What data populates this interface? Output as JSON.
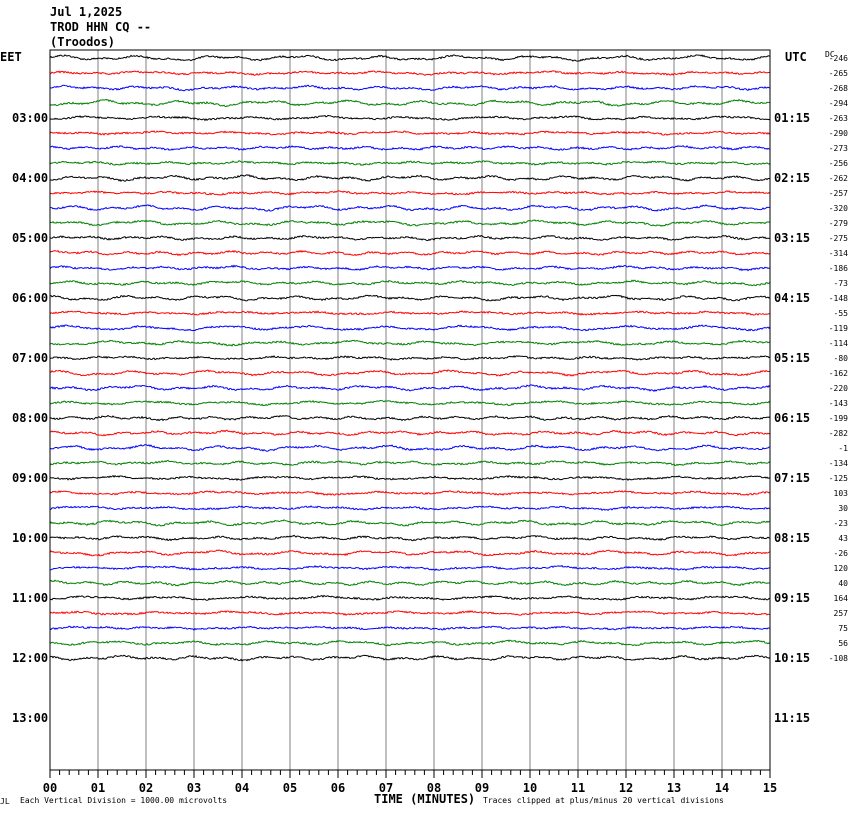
{
  "header": {
    "date": "Jul 1,2025",
    "station": "TROD HHN CQ --",
    "location": "(Troodos)"
  },
  "labels": {
    "left_tz": "EET",
    "right_tz": "UTC",
    "dc_label": "DC",
    "x_axis_title": "TIME (MINUTES)",
    "scale_note": "Each Vertical Division = 1000.00 microvolts",
    "clip_note": "Traces clipped at plus/minus 20 vertical divisions",
    "corner_mark": "JL"
  },
  "colors": {
    "cycle": [
      "#000000",
      "#ff0000",
      "#0000ff",
      "#008000"
    ],
    "grid": "#808080"
  },
  "chart_data": {
    "type": "line",
    "x_range_minutes": [
      0,
      15
    ],
    "x_ticks": [
      "00",
      "01",
      "02",
      "03",
      "04",
      "05",
      "06",
      "07",
      "08",
      "09",
      "10",
      "11",
      "12",
      "13",
      "14",
      "15"
    ],
    "left_hour_labels": [
      "03:00",
      "04:00",
      "05:00",
      "06:00",
      "07:00",
      "08:00",
      "09:00",
      "10:00",
      "11:00",
      "12:00",
      "13:00"
    ],
    "right_hour_labels": [
      "01:15",
      "02:15",
      "03:15",
      "04:15",
      "05:15",
      "06:15",
      "07:15",
      "08:15",
      "09:15",
      "10:15",
      "11:15"
    ],
    "dc_offsets": [
      "-246",
      "-265",
      "-268",
      "-294",
      "-263",
      "-290",
      "-273",
      "-256",
      "-262",
      "-257",
      "-320",
      "-279",
      "-275",
      "-314",
      "-186",
      "-73",
      "-148",
      "-55",
      "-119",
      "-114",
      "-80",
      "-162",
      "-220",
      "-143",
      "-199",
      "-282",
      "-1",
      "-134",
      "-125",
      "103",
      "30",
      "-23",
      "43",
      "-26",
      "120",
      "40",
      "164",
      "257",
      "75",
      "56",
      "-108"
    ]
  }
}
